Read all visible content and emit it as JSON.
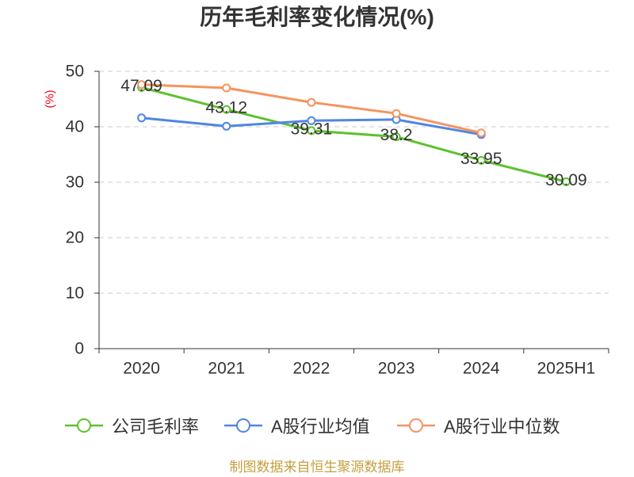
{
  "chart_data": {
    "type": "line",
    "title": "历年毛利率变化情况(%)",
    "ylabel": "(%)",
    "ylabel_color": "#e60012",
    "categories": [
      "2020",
      "2021",
      "2022",
      "2023",
      "2024",
      "2025H1"
    ],
    "ylim": [
      0,
      50
    ],
    "yticks": [
      0,
      10,
      20,
      30,
      40,
      50
    ],
    "grid": true,
    "legend_position": "bottom",
    "series": [
      {
        "name": "公司毛利率",
        "color": "#5ec12e",
        "data_labels": true,
        "values": [
          47.09,
          43.12,
          39.31,
          38.2,
          33.95,
          30.09
        ]
      },
      {
        "name": "A股行业均值",
        "color": "#4f86e3",
        "data_labels": false,
        "values": [
          41.6,
          40.1,
          41.1,
          41.3,
          38.6,
          null
        ]
      },
      {
        "name": "A股行业中位数",
        "color": "#f6935d",
        "data_labels": false,
        "values": [
          47.6,
          47.0,
          44.4,
          42.4,
          38.9,
          null
        ]
      }
    ]
  },
  "source_note": {
    "text": "制图数据来自恒生聚源数据库",
    "color": "#c5a03f"
  }
}
